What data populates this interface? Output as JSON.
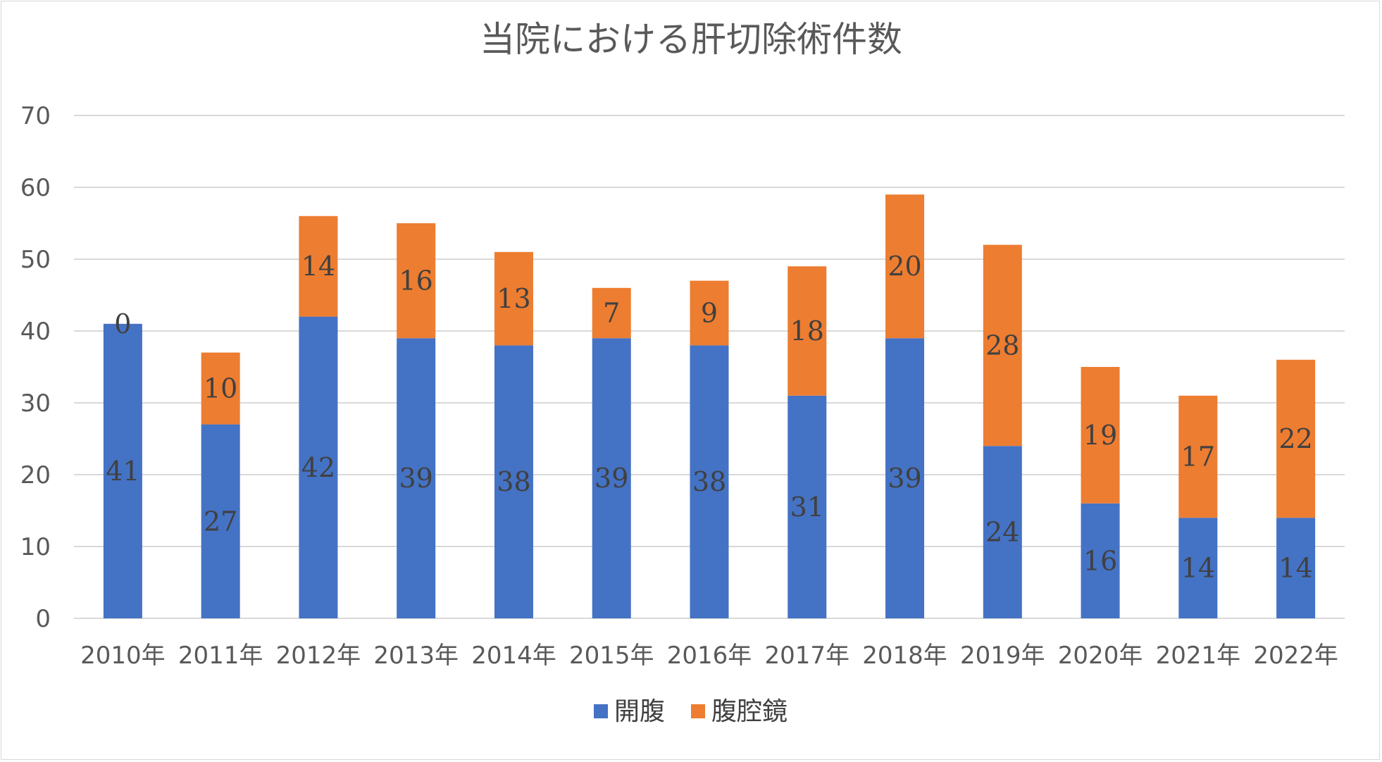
{
  "chart_data": {
    "type": "bar",
    "stacked": true,
    "title": "当院における肝切除術件数",
    "categories": [
      "2010年",
      "2011年",
      "2012年",
      "2013年",
      "2014年",
      "2015年",
      "2016年",
      "2017年",
      "2018年",
      "2019年",
      "2020年",
      "2021年",
      "2022年"
    ],
    "series": [
      {
        "name": "開腹",
        "color": "#4472c4",
        "values": [
          41,
          27,
          42,
          39,
          38,
          39,
          38,
          31,
          39,
          24,
          16,
          14,
          14
        ]
      },
      {
        "name": "腹腔鏡",
        "color": "#ed7d31",
        "values": [
          0,
          10,
          14,
          16,
          13,
          7,
          9,
          18,
          20,
          28,
          19,
          17,
          22
        ]
      }
    ],
    "ylim": [
      0,
      70
    ],
    "yticks": [
      0,
      10,
      20,
      30,
      40,
      50,
      60,
      70
    ],
    "xlabel": "",
    "ylabel": "",
    "grid": true,
    "legend": "bottom"
  }
}
